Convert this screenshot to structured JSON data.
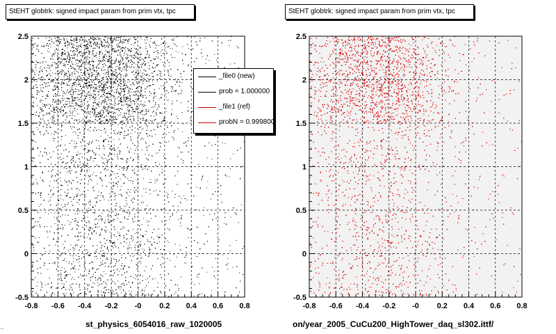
{
  "chart_data": [
    {
      "type": "scatter",
      "title": "StEHT globtrk: signed impact param from prim vtx, tpc",
      "xlabel": "st_physics_6054016_raw_1020005",
      "xlim": [
        -0.8,
        0.8
      ],
      "ylim": [
        -0.5,
        2.5
      ],
      "x_ticks": [
        "-0.8",
        "-0.6",
        "-0.4",
        "-0.2",
        "-0",
        "0.2",
        "0.4",
        "0.6",
        "0.8"
      ],
      "y_ticks": [
        "-0.5",
        "0",
        "0.5",
        "1",
        "1.5",
        "2",
        "2.5"
      ],
      "grid": true,
      "marker_color": "#000000",
      "series": [
        {
          "color": "#000000",
          "density_note": "dense band for y 1.5-2.5, peaked near x=-0.3; sparse elsewhere"
        }
      ],
      "legend": {
        "placement": "top-right",
        "entries": [
          {
            "label": "_file0 (new)",
            "color": "#000000"
          },
          {
            "label": "prob = 1.000000",
            "color": "#000000"
          },
          {
            "label": "_file1 (ref)",
            "color": "#cc0000"
          },
          {
            "label": "probN = 0.999800",
            "color": "#cc0000"
          }
        ]
      }
    },
    {
      "type": "scatter",
      "title": "StEHT globtrk: signed impact param from prim vtx, tpc",
      "xlabel": "on/year_2005_CuCu200_HighTower_daq_sl302.ittf/",
      "xlim": [
        -0.8,
        0.8
      ],
      "ylim": [
        -0.5,
        2.5
      ],
      "x_ticks": [
        "-0.8",
        "-0.6",
        "-0.4",
        "-0.2",
        "-0",
        "0.2",
        "0.4",
        "0.6",
        "0.8"
      ],
      "y_ticks": [
        "-0.5",
        "0",
        "0.5",
        "1",
        "1.5",
        "2",
        "2.5"
      ],
      "grid": true,
      "marker_color": "#dd0000",
      "series": [
        {
          "color": "#dd0000"
        }
      ]
    }
  ],
  "footer_text": "..."
}
